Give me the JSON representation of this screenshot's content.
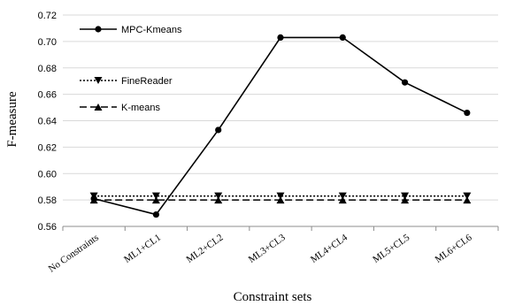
{
  "chart_data": {
    "type": "line",
    "title": "",
    "xlabel": "Constraint sets",
    "ylabel": "F-measure",
    "categories": [
      "No Constraints",
      "ML1+CL1",
      "ML2+CL2",
      "ML3+CL3",
      "ML4+CL4",
      "ML5+CL5",
      "ML6+CL6"
    ],
    "ylim": [
      0.56,
      0.72
    ],
    "yticks": [
      "0.56",
      "0.58",
      "0.60",
      "0.62",
      "0.64",
      "0.66",
      "0.68",
      "0.70",
      "0.72"
    ],
    "grid": true,
    "legend_position": "top-left",
    "series": [
      {
        "name": "MPC-Kmeans",
        "values": [
          0.581,
          0.569,
          0.633,
          0.703,
          0.703,
          0.669,
          0.646
        ],
        "line_style": "solid",
        "marker": "circle",
        "color": "#000000"
      },
      {
        "name": "FineReader",
        "values": [
          0.583,
          0.583,
          0.583,
          0.583,
          0.583,
          0.583,
          0.583
        ],
        "line_style": "dotted",
        "marker": "triangle-down",
        "color": "#000000"
      },
      {
        "name": "K-means",
        "values": [
          0.58,
          0.58,
          0.58,
          0.58,
          0.58,
          0.58,
          0.58
        ],
        "line_style": "dashed",
        "marker": "triangle-up",
        "color": "#000000"
      }
    ]
  }
}
